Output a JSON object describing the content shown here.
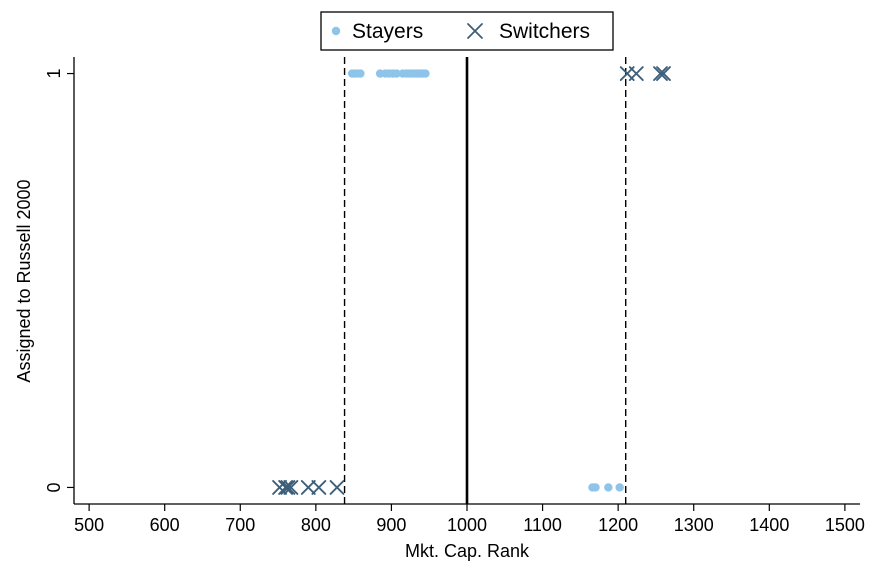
{
  "chart_data": {
    "type": "scatter",
    "title": "",
    "xlabel": "Mkt. Cap. Rank",
    "ylabel": "Assigned to Russell 2000",
    "xlim": [
      480,
      1520
    ],
    "ylim": [
      -0.04,
      1.04
    ],
    "xticks": [
      500,
      600,
      700,
      800,
      900,
      1000,
      1100,
      1200,
      1300,
      1400,
      1500
    ],
    "yticks": [
      0,
      1
    ],
    "grid": false,
    "legend_position": "top-center",
    "reference_lines": [
      {
        "x": 838,
        "style": "dashed"
      },
      {
        "x": 1000,
        "style": "solid"
      },
      {
        "x": 1210,
        "style": "dashed"
      }
    ],
    "series": [
      {
        "name": "Stayers",
        "marker": "circle",
        "color": "#8ec3ea",
        "points": [
          {
            "x": 848,
            "y": 1
          },
          {
            "x": 851,
            "y": 1
          },
          {
            "x": 855,
            "y": 1
          },
          {
            "x": 859,
            "y": 1
          },
          {
            "x": 885,
            "y": 1
          },
          {
            "x": 892,
            "y": 1
          },
          {
            "x": 897,
            "y": 1
          },
          {
            "x": 902,
            "y": 1
          },
          {
            "x": 907,
            "y": 1
          },
          {
            "x": 915,
            "y": 1
          },
          {
            "x": 920,
            "y": 1
          },
          {
            "x": 924,
            "y": 1
          },
          {
            "x": 927,
            "y": 1
          },
          {
            "x": 930,
            "y": 1
          },
          {
            "x": 933,
            "y": 1
          },
          {
            "x": 936,
            "y": 1
          },
          {
            "x": 939,
            "y": 1
          },
          {
            "x": 942,
            "y": 1
          },
          {
            "x": 945,
            "y": 1
          },
          {
            "x": 1166,
            "y": 0
          },
          {
            "x": 1170,
            "y": 0
          },
          {
            "x": 1187,
            "y": 0
          },
          {
            "x": 1202,
            "y": 0
          }
        ]
      },
      {
        "name": "Switchers",
        "marker": "x",
        "color": "#3d5f7a",
        "points": [
          {
            "x": 752,
            "y": 0
          },
          {
            "x": 760,
            "y": 0
          },
          {
            "x": 763,
            "y": 0
          },
          {
            "x": 767,
            "y": 0
          },
          {
            "x": 790,
            "y": 0
          },
          {
            "x": 804,
            "y": 0
          },
          {
            "x": 828,
            "y": 0
          },
          {
            "x": 1212,
            "y": 1
          },
          {
            "x": 1224,
            "y": 1
          },
          {
            "x": 1256,
            "y": 1
          },
          {
            "x": 1260,
            "y": 1
          }
        ]
      }
    ]
  }
}
